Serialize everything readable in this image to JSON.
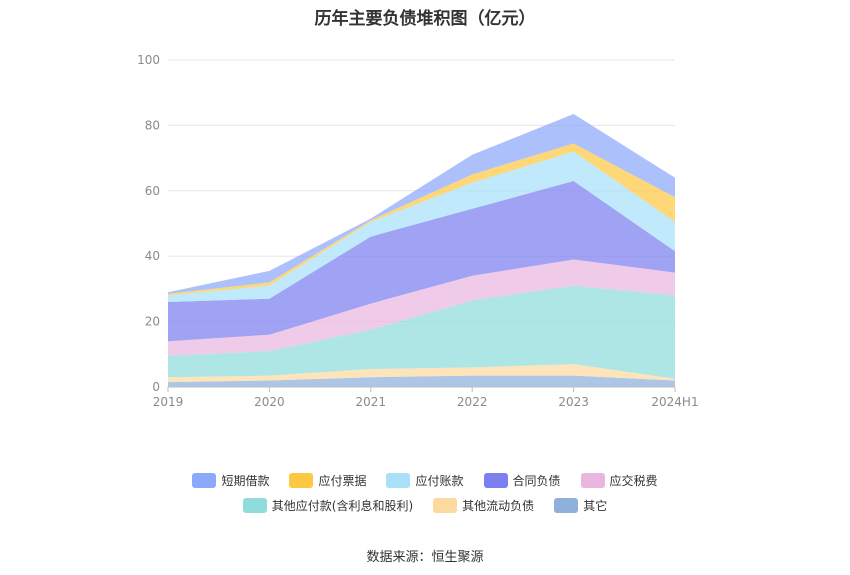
{
  "chart_data": {
    "type": "area",
    "stacked": true,
    "title": "历年主要负债堆积图（亿元）",
    "source": "数据来源：恒生聚源",
    "categories": [
      "2019",
      "2020",
      "2021",
      "2022",
      "2023",
      "2024H1"
    ],
    "ylim": [
      0,
      100
    ],
    "yticks": [
      "0",
      "20",
      "40",
      "60",
      "80",
      "100"
    ],
    "grid": true,
    "legend_position": "bottom",
    "series": [
      {
        "name": "其它",
        "color": "#8fb0dc",
        "values": [
          1.5,
          2.0,
          3.0,
          3.5,
          3.5,
          2.0
        ]
      },
      {
        "name": "其他流动负债",
        "color": "#fdd9a0",
        "values": [
          1.5,
          1.5,
          2.5,
          2.5,
          3.5,
          0.5
        ]
      },
      {
        "name": "其他应付款(含利息和股利)",
        "color": "#8fdcdc",
        "values": [
          6.5,
          7.5,
          12.0,
          20.5,
          24.0,
          25.5
        ]
      },
      {
        "name": "应交税费",
        "color": "#eab6e0",
        "values": [
          4.5,
          5.0,
          8.0,
          7.5,
          8.0,
          7.0
        ]
      },
      {
        "name": "合同负债",
        "color": "#7b7ff0",
        "values": [
          12.0,
          11.0,
          20.5,
          20.5,
          24.0,
          6.5
        ]
      },
      {
        "name": "应付账款",
        "color": "#a8e0fa",
        "values": [
          2.0,
          4.0,
          4.5,
          8.0,
          9.0,
          9.0
        ]
      },
      {
        "name": "应付票据",
        "color": "#fcc844",
        "values": [
          0.5,
          1.0,
          0.5,
          2.5,
          2.5,
          7.5
        ]
      },
      {
        "name": "短期借款",
        "color": "#8ca8fb",
        "values": [
          0.5,
          3.5,
          0.5,
          6.0,
          9.0,
          6.0
        ]
      }
    ],
    "legend_rows": [
      [
        "短期借款",
        "应付票据",
        "应付账款",
        "合同负债",
        "应交税费"
      ],
      [
        "其他应付款(含利息和股利)",
        "其他流动负债",
        "其它"
      ]
    ]
  }
}
